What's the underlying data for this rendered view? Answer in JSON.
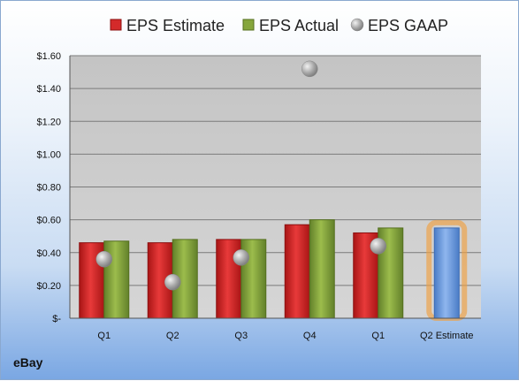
{
  "company": "eBay",
  "chart_data": {
    "type": "bar",
    "categories": [
      "Q1",
      "Q2",
      "Q3",
      "Q4",
      "Q1",
      "Q2 Estimate"
    ],
    "series": [
      {
        "name": "EPS Estimate",
        "values": [
          0.46,
          0.46,
          0.48,
          0.57,
          0.52,
          null
        ],
        "color": "#d42a2a"
      },
      {
        "name": "EPS Actual",
        "values": [
          0.47,
          0.48,
          0.48,
          0.6,
          0.55,
          null
        ],
        "color": "#86a63c"
      },
      {
        "name": "EPS GAAP",
        "values": [
          0.36,
          0.22,
          0.37,
          1.52,
          0.44,
          null
        ],
        "color": "#a8a8a8",
        "style": "marker"
      }
    ],
    "highlight": {
      "category": "Q2 Estimate",
      "value": 0.55,
      "color": "#6f9fe0",
      "glow_color": "#f0a040"
    },
    "ylim": [
      0,
      1.6
    ],
    "y_ticks": [
      0,
      0.2,
      0.4,
      0.6,
      0.8,
      1.0,
      1.2,
      1.4,
      1.6
    ],
    "y_tick_labels": [
      "$-",
      "$0.20",
      "$0.40",
      "$0.60",
      "$0.80",
      "$1.00",
      "$1.20",
      "$1.40",
      "$1.60"
    ],
    "grid": true,
    "legend_position": "top",
    "title": "",
    "xlabel": "",
    "ylabel": ""
  }
}
